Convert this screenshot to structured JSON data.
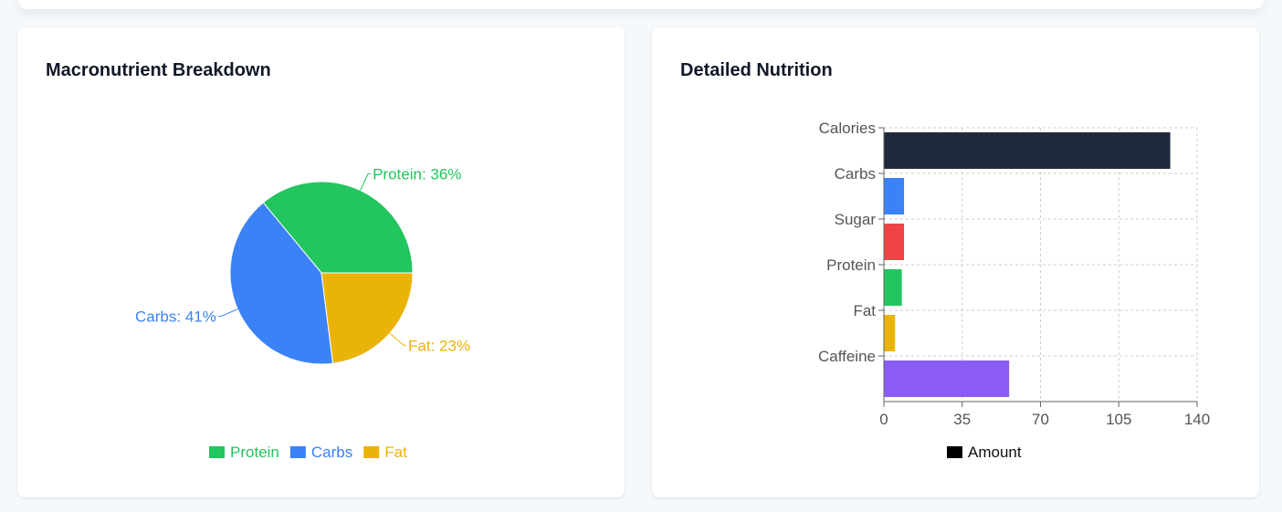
{
  "macro_card": {
    "title": "Macronutrient Breakdown"
  },
  "detail_card": {
    "title": "Detailed Nutrition"
  },
  "chart_data": [
    {
      "type": "pie",
      "title": "Macronutrient Breakdown",
      "categories": [
        "Protein",
        "Carbs",
        "Fat"
      ],
      "values": [
        36,
        41,
        23
      ],
      "labels": [
        "Protein: 36%",
        "Carbs: 41%",
        "Fat: 23%"
      ],
      "colors": [
        "#22c55e",
        "#3b82f6",
        "#eab308"
      ],
      "legend": "bottom"
    },
    {
      "type": "bar",
      "orientation": "horizontal",
      "title": "Detailed Nutrition",
      "categories": [
        "Calories",
        "Carbs",
        "Sugar",
        "Protein",
        "Fat",
        "Caffeine"
      ],
      "series": [
        {
          "name": "Amount",
          "values": [
            128,
            9,
            9,
            8,
            5,
            56
          ]
        }
      ],
      "colors": [
        "#1e293b",
        "#3b82f6",
        "#ef4444",
        "#22c55e",
        "#eab308",
        "#8b5cf6"
      ],
      "xlim": [
        0,
        140
      ],
      "xticks": [
        "0",
        "35",
        "70",
        "105",
        "140"
      ],
      "grid": true,
      "legend": "bottom",
      "legend_color": "#000000"
    }
  ]
}
